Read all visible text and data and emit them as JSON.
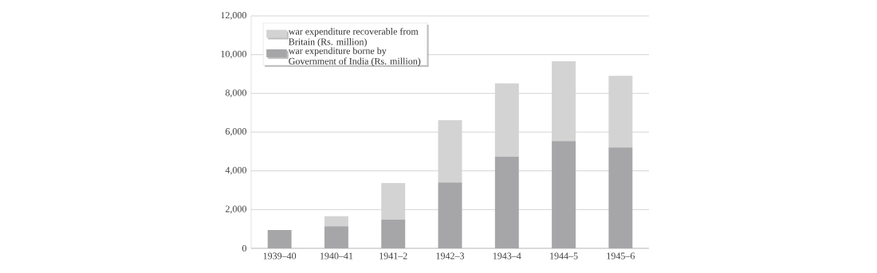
{
  "chart_data": {
    "type": "bar",
    "stacked": true,
    "categories": [
      "1939–40",
      "1940–41",
      "1941–2",
      "1942–3",
      "1943–4",
      "1944–5",
      "1945–6"
    ],
    "series": [
      {
        "name": "war expenditure borne by Government of India (Rs. million)",
        "color": "#a6a6a8",
        "values": [
          950,
          1140,
          1480,
          3400,
          4740,
          5540,
          5210
        ]
      },
      {
        "name": "war expenditure recoverable from Britain (Rs. million)",
        "color": "#d3d3d3",
        "values": [
          null,
          520,
          1890,
          3220,
          3780,
          4120,
          3700
        ]
      }
    ],
    "ylim": [
      0,
      12000
    ],
    "yticks": [
      {
        "value": 0,
        "label": "0"
      },
      {
        "value": 2000,
        "label": "2,000"
      },
      {
        "value": 4000,
        "label": "4,000"
      },
      {
        "value": 6000,
        "label": "6,000"
      },
      {
        "value": 8000,
        "label": "8,000"
      },
      {
        "value": 10000,
        "label": "10,000"
      },
      {
        "value": 12000,
        "label": "12,000"
      }
    ],
    "grid": "y",
    "legend": "top left"
  }
}
